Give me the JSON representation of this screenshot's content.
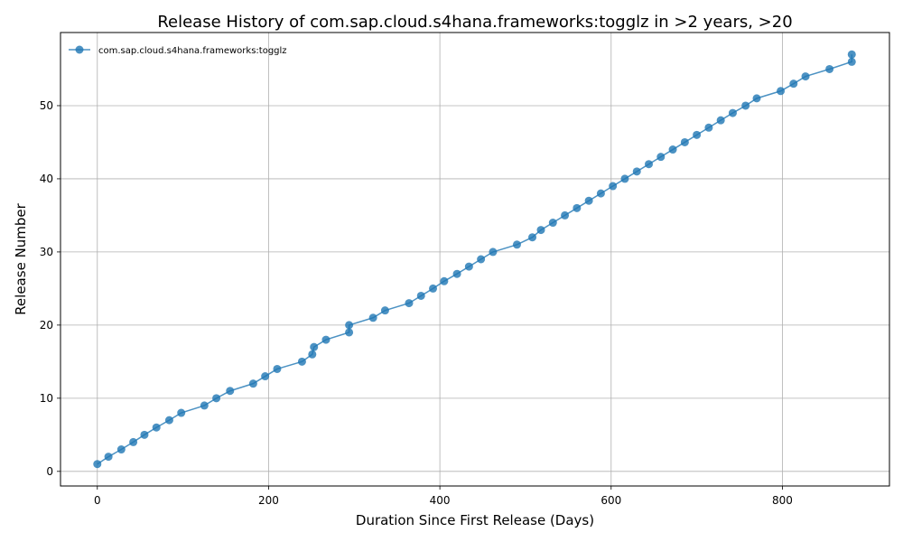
{
  "chart_data": {
    "type": "line",
    "title": "Release History of com.sap.cloud.s4hana.frameworks:togglz in >2 years, >20",
    "xlabel": "Duration Since First Release (Days)",
    "ylabel": "Release Number",
    "xlim": [
      -43,
      925
    ],
    "ylim": [
      -2,
      60
    ],
    "xticks": [
      0,
      200,
      400,
      600,
      800
    ],
    "yticks": [
      0,
      10,
      20,
      30,
      40,
      50
    ],
    "grid": true,
    "legend_position": "top-left",
    "color": "#1f77b4",
    "series": [
      {
        "name": "com.sap.cloud.s4hana.frameworks:togglz",
        "x": [
          0,
          13,
          28,
          42,
          55,
          69,
          84,
          98,
          125,
          139,
          155,
          182,
          196,
          210,
          239,
          251,
          253,
          267,
          294,
          294,
          322,
          336,
          364,
          378,
          392,
          405,
          420,
          434,
          448,
          462,
          490,
          508,
          518,
          532,
          546,
          560,
          574,
          588,
          602,
          616,
          630,
          644,
          658,
          672,
          686,
          700,
          714,
          728,
          742,
          757,
          770,
          798,
          813,
          827,
          855,
          881,
          881
        ],
        "y": [
          1,
          2,
          3,
          4,
          5,
          6,
          7,
          8,
          9,
          10,
          11,
          12,
          13,
          14,
          15,
          16,
          17,
          18,
          19,
          20,
          21,
          22,
          23,
          24,
          25,
          26,
          27,
          28,
          29,
          30,
          31,
          32,
          33,
          34,
          35,
          36,
          37,
          38,
          39,
          40,
          41,
          42,
          43,
          44,
          45,
          46,
          47,
          48,
          49,
          50,
          51,
          52,
          53,
          54,
          55,
          56,
          57
        ]
      }
    ]
  }
}
